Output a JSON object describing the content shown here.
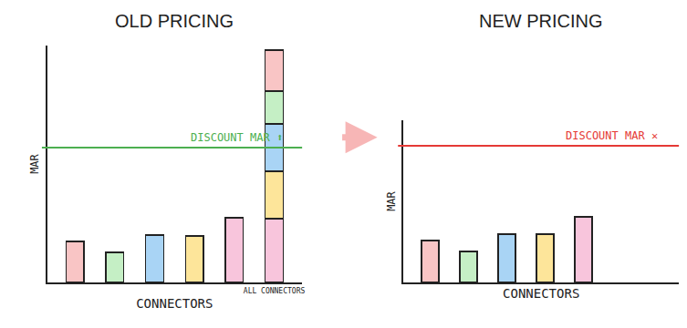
{
  "chart_data": [
    {
      "type": "bar",
      "title": "OLD PRICING",
      "x_label": "CONNECTORS",
      "y_label": "MAR",
      "categories": [
        null,
        null,
        null,
        null,
        null,
        "ALL CONNECTORS"
      ],
      "stacked": true,
      "tick_labels": "x",
      "ylim": [
        0,
        260
      ],
      "series": [
        {
          "color": "#f8c5dc",
          "values": [
            null,
            null,
            null,
            null,
            71,
            70
          ]
        },
        {
          "color": "#fde59a",
          "values": [
            null,
            null,
            null,
            51,
            null,
            52
          ]
        },
        {
          "color": "#a9d4f5",
          "values": [
            null,
            null,
            52,
            null,
            null,
            52
          ]
        },
        {
          "color": "#c5efc5",
          "values": [
            null,
            33,
            null,
            null,
            null,
            36
          ]
        },
        {
          "color": "#f9c5c5",
          "values": [
            45,
            null,
            null,
            null,
            null,
            45
          ]
        }
      ],
      "annotations": [
        {
          "text": "DISCOUNT MAR ⬆",
          "y": 148,
          "color": "#4caf50"
        }
      ]
    },
    {
      "type": "bar",
      "title": "NEW PRICING",
      "x_label": "CONNECTORS",
      "y_label": "MAR",
      "categories": [
        null,
        null,
        null,
        null,
        null
      ],
      "tick_labels": false,
      "ylim": [
        0,
        178
      ],
      "values": [
        46,
        34,
        53,
        53,
        72
      ],
      "colors": [
        "#f9c5c5",
        "#c5efc5",
        "#a9d4f5",
        "#fde59a",
        "#f8c5dc"
      ],
      "annotations": [
        {
          "text": "DISCOUNT MAR ✕",
          "y": 150,
          "color": "#e53935"
        }
      ]
    }
  ]
}
